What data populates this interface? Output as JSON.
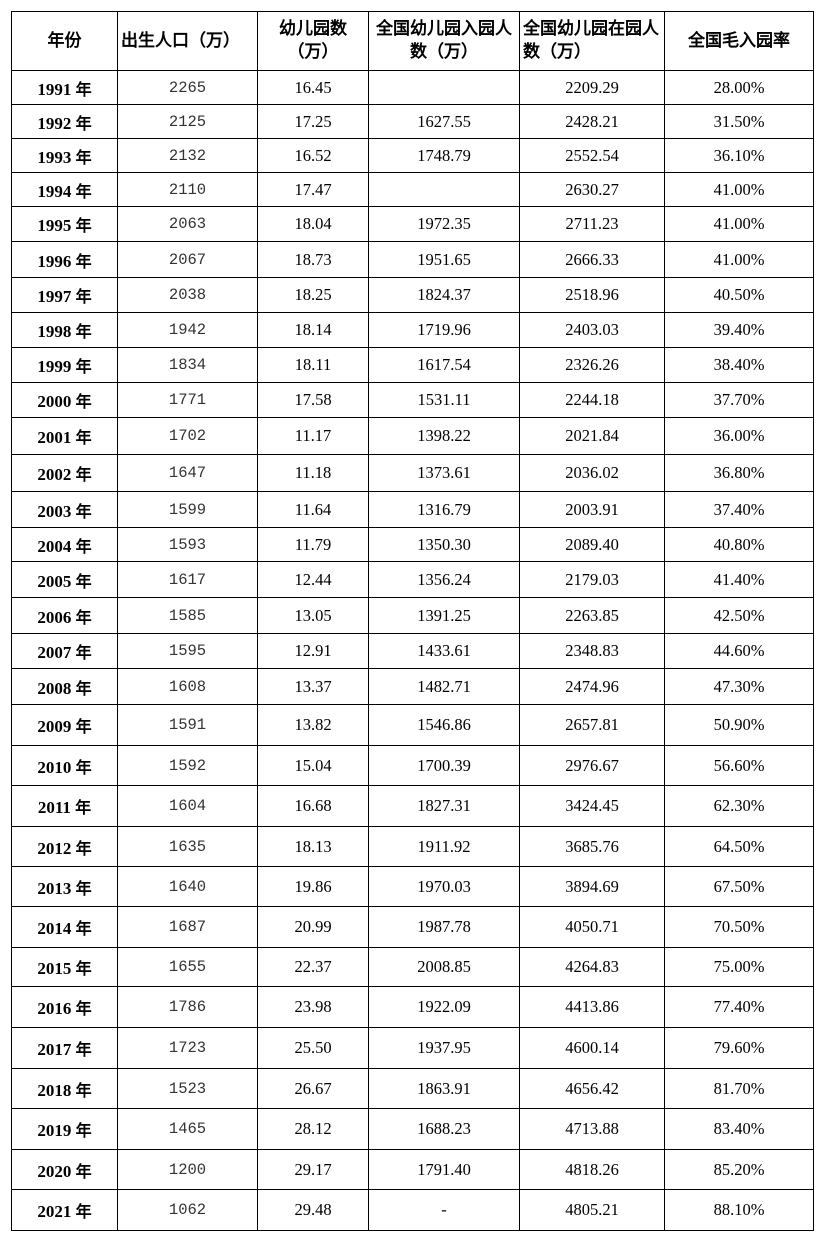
{
  "table": {
    "headers": [
      "年份",
      "出生人口（万）",
      "幼儿园数（万）",
      "全国幼儿园入园人数（万）",
      "全国幼儿园在园人数（万）",
      "全国毛入园率"
    ],
    "year_suffix": "年",
    "rows": [
      {
        "year": "1991",
        "birth": "2265",
        "kg": "16.45",
        "enroll": "",
        "inschool": "2209.29",
        "rate": "28.00%"
      },
      {
        "year": "1992",
        "birth": "2125",
        "kg": "17.25",
        "enroll": "1627.55",
        "inschool": "2428.21",
        "rate": "31.50%"
      },
      {
        "year": "1993",
        "birth": "2132",
        "kg": "16.52",
        "enroll": "1748.79",
        "inschool": "2552.54",
        "rate": "36.10%"
      },
      {
        "year": "1994",
        "birth": "2110",
        "kg": "17.47",
        "enroll": "",
        "inschool": "2630.27",
        "rate": "41.00%"
      },
      {
        "year": "1995",
        "birth": "2063",
        "kg": "18.04",
        "enroll": "1972.35",
        "inschool": "2711.23",
        "rate": "41.00%"
      },
      {
        "year": "1996",
        "birth": "2067",
        "kg": "18.73",
        "enroll": "1951.65",
        "inschool": "2666.33",
        "rate": "41.00%"
      },
      {
        "year": "1997",
        "birth": "2038",
        "kg": "18.25",
        "enroll": "1824.37",
        "inschool": "2518.96",
        "rate": "40.50%"
      },
      {
        "year": "1998",
        "birth": "1942",
        "kg": "18.14",
        "enroll": "1719.96",
        "inschool": "2403.03",
        "rate": "39.40%"
      },
      {
        "year": "1999",
        "birth": "1834",
        "kg": "18.11",
        "enroll": "1617.54",
        "inschool": "2326.26",
        "rate": "38.40%"
      },
      {
        "year": "2000",
        "birth": "1771",
        "kg": "17.58",
        "enroll": "1531.11",
        "inschool": "2244.18",
        "rate": "37.70%"
      },
      {
        "year": "2001",
        "birth": "1702",
        "kg": "11.17",
        "enroll": "1398.22",
        "inschool": "2021.84",
        "rate": "36.00%"
      },
      {
        "year": "2002",
        "birth": "1647",
        "kg": "11.18",
        "enroll": "1373.61",
        "inschool": "2036.02",
        "rate": "36.80%"
      },
      {
        "year": "2003",
        "birth": "1599",
        "kg": "11.64",
        "enroll": "1316.79",
        "inschool": "2003.91",
        "rate": "37.40%"
      },
      {
        "year": "2004",
        "birth": "1593",
        "kg": "11.79",
        "enroll": "1350.30",
        "inschool": "2089.40",
        "rate": "40.80%"
      },
      {
        "year": "2005",
        "birth": "1617",
        "kg": "12.44",
        "enroll": "1356.24",
        "inschool": "2179.03",
        "rate": "41.40%"
      },
      {
        "year": "2006",
        "birth": "1585",
        "kg": "13.05",
        "enroll": "1391.25",
        "inschool": "2263.85",
        "rate": "42.50%"
      },
      {
        "year": "2007",
        "birth": "1595",
        "kg": "12.91",
        "enroll": "1433.61",
        "inschool": "2348.83",
        "rate": "44.60%"
      },
      {
        "year": "2008",
        "birth": "1608",
        "kg": "13.37",
        "enroll": "1482.71",
        "inschool": "2474.96",
        "rate": "47.30%"
      },
      {
        "year": "2009",
        "birth": "1591",
        "kg": "13.82",
        "enroll": "1546.86",
        "inschool": "2657.81",
        "rate": "50.90%"
      },
      {
        "year": "2010",
        "birth": "1592",
        "kg": "15.04",
        "enroll": "1700.39",
        "inschool": "2976.67",
        "rate": "56.60%"
      },
      {
        "year": "2011",
        "birth": "1604",
        "kg": "16.68",
        "enroll": "1827.31",
        "inschool": "3424.45",
        "rate": "62.30%"
      },
      {
        "year": "2012",
        "birth": "1635",
        "kg": "18.13",
        "enroll": "1911.92",
        "inschool": "3685.76",
        "rate": "64.50%"
      },
      {
        "year": "2013",
        "birth": "1640",
        "kg": "19.86",
        "enroll": "1970.03",
        "inschool": "3894.69",
        "rate": "67.50%"
      },
      {
        "year": "2014",
        "birth": "1687",
        "kg": "20.99",
        "enroll": "1987.78",
        "inschool": "4050.71",
        "rate": "70.50%"
      },
      {
        "year": "2015",
        "birth": "1655",
        "kg": "22.37",
        "enroll": "2008.85",
        "inschool": "4264.83",
        "rate": "75.00%"
      },
      {
        "year": "2016",
        "birth": "1786",
        "kg": "23.98",
        "enroll": "1922.09",
        "inschool": "4413.86",
        "rate": "77.40%"
      },
      {
        "year": "2017",
        "birth": "1723",
        "kg": "25.50",
        "enroll": "1937.95",
        "inschool": "4600.14",
        "rate": "79.60%"
      },
      {
        "year": "2018",
        "birth": "1523",
        "kg": "26.67",
        "enroll": "1863.91",
        "inschool": "4656.42",
        "rate": "81.70%"
      },
      {
        "year": "2019",
        "birth": "1465",
        "kg": "28.12",
        "enroll": "1688.23",
        "inschool": "4713.88",
        "rate": "83.40%"
      },
      {
        "year": "2020",
        "birth": "1200",
        "kg": "29.17",
        "enroll": "1791.40",
        "inschool": "4818.26",
        "rate": "85.20%"
      },
      {
        "year": "2021",
        "birth": "1062",
        "kg": "29.48",
        "enroll": "-",
        "inschool": "4805.21",
        "rate": "88.10%"
      }
    ]
  }
}
